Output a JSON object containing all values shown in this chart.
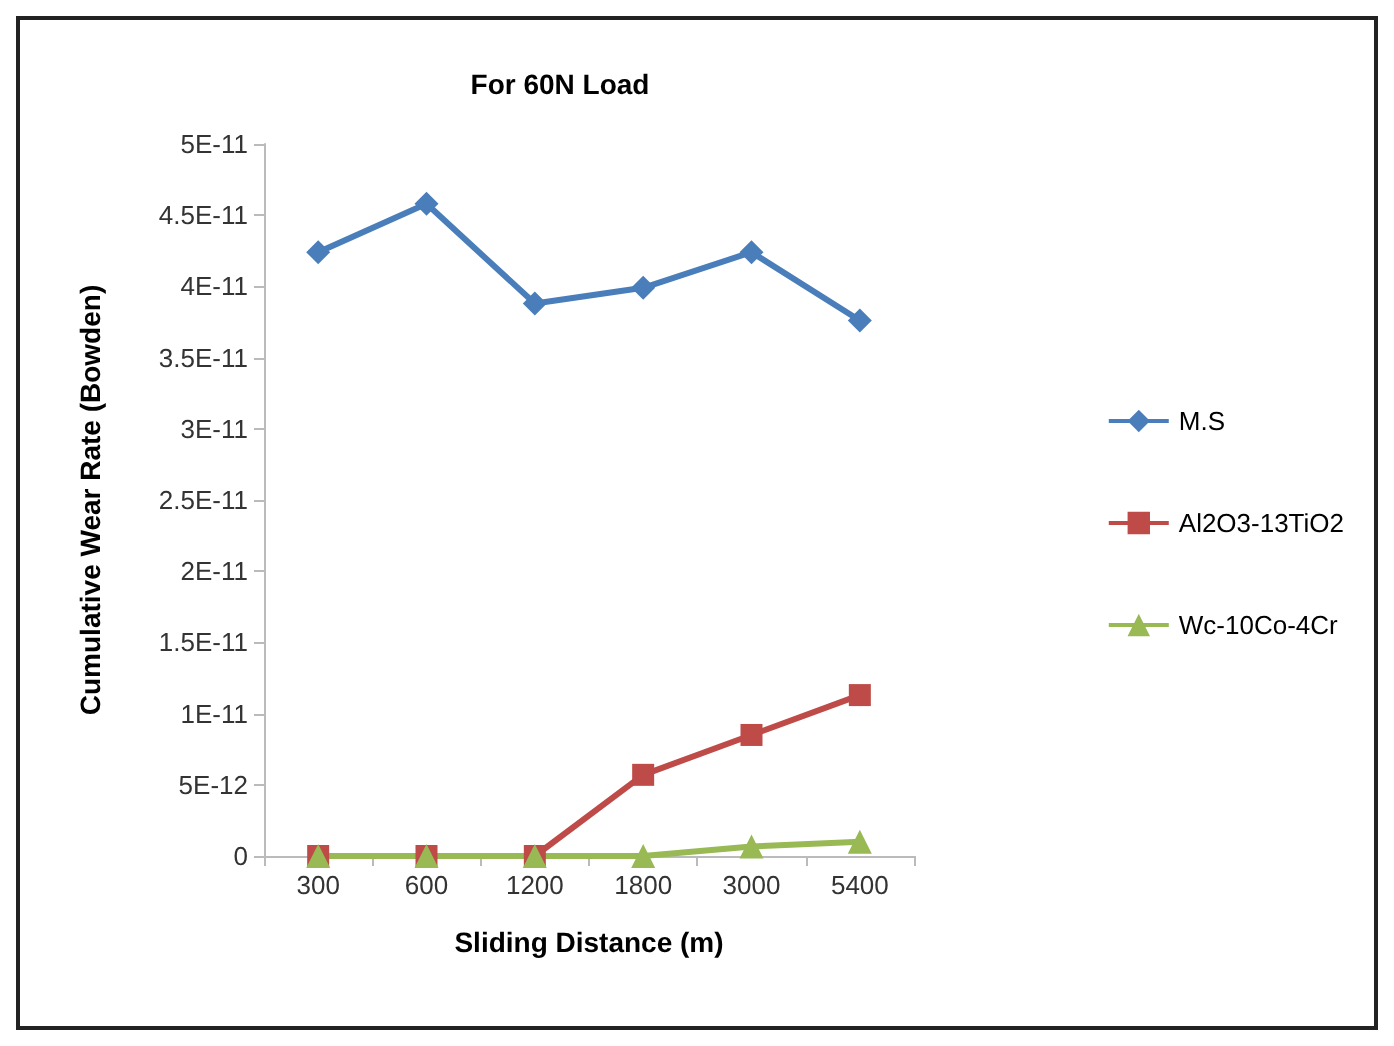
{
  "chart_data": {
    "type": "line",
    "title": "For 60N Load",
    "xlabel": "Sliding Distance (m)",
    "ylabel": "Cumulative Wear Rate (Bowden)",
    "categories": [
      "300",
      "600",
      "1200",
      "1800",
      "3000",
      "5400"
    ],
    "series": [
      {
        "name": "M.S",
        "color": "#4a7ebb",
        "marker": "diamond",
        "values": [
          4.24e-11,
          4.58e-11,
          3.88e-11,
          3.99e-11,
          4.24e-11,
          3.76e-11
        ]
      },
      {
        "name": "Al2O3-13TiO2",
        "color": "#be4b48",
        "marker": "square",
        "values": [
          0,
          0,
          0,
          5.7e-12,
          8.5e-12,
          1.13e-11
        ]
      },
      {
        "name": "Wc-10Co-4Cr",
        "color": "#98b954",
        "marker": "triangle",
        "values": [
          0,
          0,
          0,
          0,
          6.7e-13,
          1e-12
        ]
      }
    ],
    "ylim": [
      0,
      5e-11
    ],
    "yticks": [
      {
        "value": 0,
        "label": "0"
      },
      {
        "value": 5e-12,
        "label": "5E-12"
      },
      {
        "value": 1e-11,
        "label": "1E-11"
      },
      {
        "value": 1.5e-11,
        "label": "1.5E-11"
      },
      {
        "value": 2e-11,
        "label": "2E-11"
      },
      {
        "value": 2.5e-11,
        "label": "2.5E-11"
      },
      {
        "value": 3e-11,
        "label": "3E-11"
      },
      {
        "value": 3.5e-11,
        "label": "3.5E-11"
      },
      {
        "value": 4e-11,
        "label": "4E-11"
      },
      {
        "value": 4.5e-11,
        "label": "4.5E-11"
      },
      {
        "value": 5e-11,
        "label": "5E-11"
      }
    ],
    "grid": false,
    "legend": "right"
  }
}
